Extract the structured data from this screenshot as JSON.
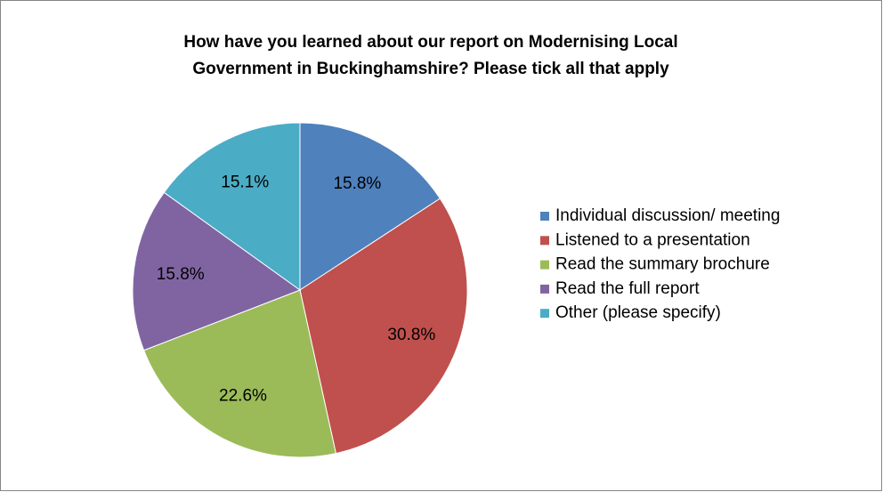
{
  "chart_data": {
    "type": "pie",
    "title": [
      "How have you learned about our report on Modernising Local",
      "Government in Buckinghamshire? Please tick all that apply"
    ],
    "categories": [
      "Individual discussion/ meeting",
      "Listened to a presentation",
      "Read the summary brochure",
      "Read the full report",
      "Other (please specify)"
    ],
    "values": [
      15.8,
      30.8,
      22.6,
      15.8,
      15.1
    ],
    "value_labels": [
      "15.8%",
      "30.8%",
      "22.6%",
      "15.8%",
      "15.1%"
    ],
    "colors": [
      "#4f81bd",
      "#c0504d",
      "#9bbb59",
      "#8064a2",
      "#4bacc6"
    ],
    "legend": "right"
  }
}
